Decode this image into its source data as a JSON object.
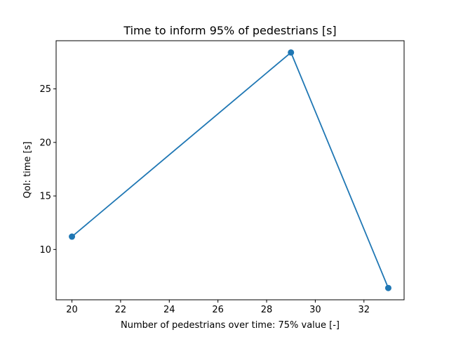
{
  "chart_data": {
    "type": "line",
    "title": "Time to inform 95% of pedestrians [s]",
    "xlabel": "Number of pedestrians over time: 75% value [-]",
    "ylabel": "QoI: time [s]",
    "x": [
      20,
      29,
      33
    ],
    "series": [
      {
        "values": [
          11.2,
          28.4,
          6.4
        ],
        "color": "#1f77b4",
        "marker": "circle"
      }
    ],
    "xlim": [
      19.35,
      33.65
    ],
    "ylim": [
      5.3,
      29.5
    ],
    "xticks": [
      20,
      22,
      24,
      26,
      28,
      30,
      32
    ],
    "yticks": [
      10,
      15,
      20,
      25
    ],
    "grid": false
  }
}
